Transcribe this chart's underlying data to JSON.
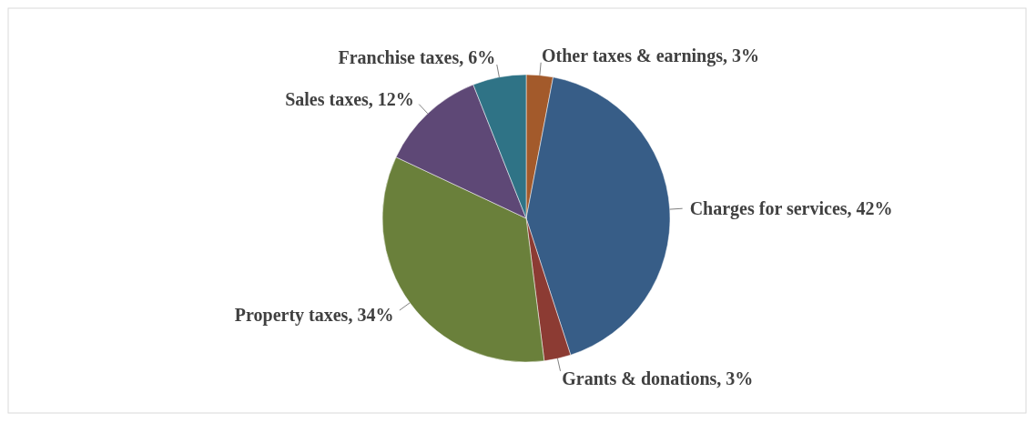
{
  "chart_data": {
    "type": "pie",
    "categories": [
      "Other taxes & earnings",
      "Charges for services",
      "Grants & donations",
      "Property taxes",
      "Sales taxes",
      "Franchise taxes"
    ],
    "values": [
      3,
      42,
      3,
      34,
      12,
      6
    ],
    "value_labels": [
      "3%",
      "42%",
      "3%",
      "34%",
      "12%",
      "6%"
    ],
    "colors": [
      "#a35a2b",
      "#375d87",
      "#8c3b33",
      "#6a803b",
      "#5e4876",
      "#2f7386"
    ]
  }
}
